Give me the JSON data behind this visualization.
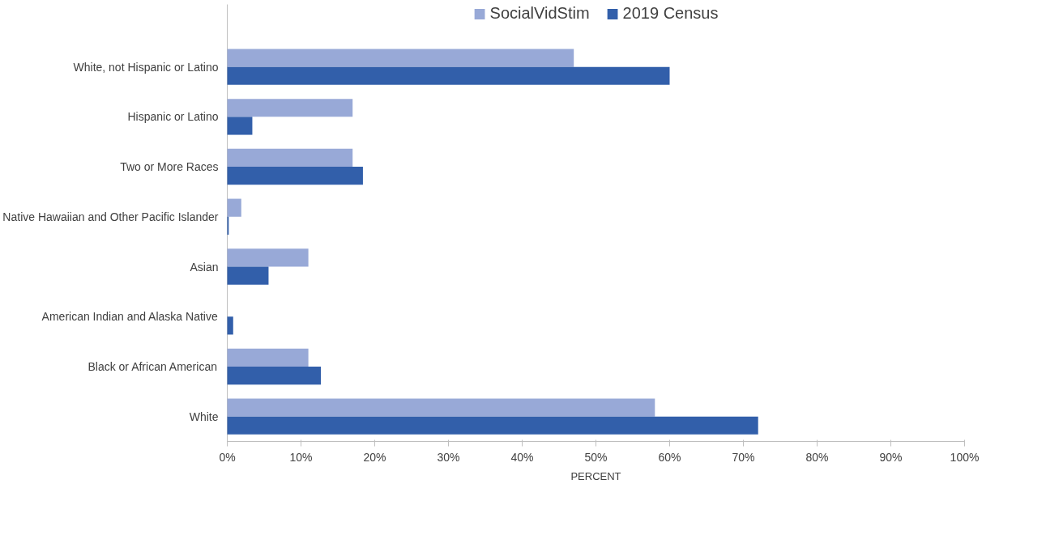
{
  "chart_data": {
    "type": "bar",
    "orientation": "horizontal",
    "xlabel": "PERCENT",
    "categories": [
      "White, not Hispanic or Latino",
      "Hispanic or Latino",
      "Two or More Races",
      "Native Hawaiian and Other Pacific Islander",
      "Asian",
      "American Indian and Alaska Native",
      "Black or African American",
      "White"
    ],
    "series": [
      {
        "name": "SocialVidStim",
        "color": "#98a9d7",
        "values": [
          47,
          17,
          17,
          1.9,
          11,
          0,
          11,
          58
        ]
      },
      {
        "name": "2019 Census",
        "color": "#325faa",
        "values": [
          60,
          3.4,
          18.4,
          0.2,
          5.6,
          0.8,
          12.7,
          72
        ]
      }
    ],
    "xlim": [
      0,
      100
    ],
    "xticks": [
      {
        "value": 0,
        "label": "0%"
      },
      {
        "value": 10,
        "label": "10%"
      },
      {
        "value": 20,
        "label": "20%"
      },
      {
        "value": 30,
        "label": "30%"
      },
      {
        "value": 40,
        "label": "40%"
      },
      {
        "value": 50,
        "label": "50%"
      },
      {
        "value": 60,
        "label": "60%"
      },
      {
        "value": 70,
        "label": "70%"
      },
      {
        "value": 80,
        "label": "80%"
      },
      {
        "value": 90,
        "label": "90%"
      },
      {
        "value": 100,
        "label": "100%"
      }
    ],
    "grid": false,
    "legend": "top"
  }
}
